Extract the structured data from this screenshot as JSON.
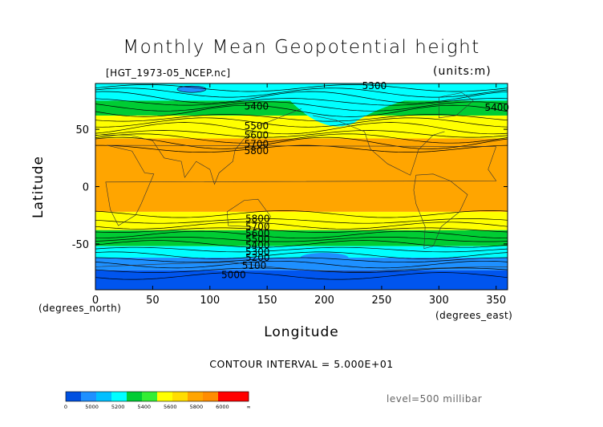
{
  "header": {
    "title": "Monthly Mean Geopotential height",
    "file_label": "[HGT_1973-05_NCEP.nc]",
    "units_label": "(units:m)"
  },
  "axes": {
    "xlabel": "Longitude",
    "ylabel": "Latitude",
    "x_unit": "(degrees_east)",
    "y_unit": "(degrees_north)"
  },
  "footer": {
    "contour_interval": "CONTOUR INTERVAL = 5.000E+01",
    "level": "level=500 millibar"
  },
  "chart_data": {
    "type": "contour",
    "title": "Monthly Mean Geopotential height",
    "xlabel": "Longitude",
    "ylabel": "Latitude",
    "xlim": [
      0,
      360
    ],
    "ylim": [
      -90,
      90
    ],
    "x_ticks": [
      0,
      50,
      100,
      150,
      200,
      250,
      300,
      350
    ],
    "y_ticks": [
      50,
      0,
      -50
    ],
    "units": "m",
    "contour_interval": 50,
    "bands": [
      {
        "lat_from": 90,
        "lat_to": 75,
        "lo": 5300,
        "hi": 5400,
        "color": "#00ffff"
      },
      {
        "lat_from": 75,
        "lat_to": 62,
        "lo": 5400,
        "hi": 5500,
        "color": "#00cc33"
      },
      {
        "lat_from": 62,
        "lat_to": 42,
        "lo": 5500,
        "hi": 5800,
        "color": "#ffff00"
      },
      {
        "lat_from": 42,
        "lat_to": -22,
        "lo": 5800,
        "hi": 6000,
        "color": "#ffa500"
      },
      {
        "lat_from": -22,
        "lat_to": -38,
        "lo": 5500,
        "hi": 5800,
        "color": "#ffff00"
      },
      {
        "lat_from": -38,
        "lat_to": -52,
        "lo": 5400,
        "hi": 5500,
        "color": "#00cc33"
      },
      {
        "lat_from": -52,
        "lat_to": -62,
        "lo": 5200,
        "hi": 5400,
        "color": "#00ffff"
      },
      {
        "lat_from": -62,
        "lat_to": -73,
        "lo": 5000,
        "hi": 5200,
        "color": "#1e90ff"
      },
      {
        "lat_from": -73,
        "lat_to": -90,
        "lo": 0,
        "hi": 5000,
        "color": "#0055ee"
      }
    ],
    "contour_labels": [
      {
        "text": "5300",
        "lon": 233,
        "lat": 88
      },
      {
        "text": "5400",
        "lon": 130,
        "lat": 70
      },
      {
        "text": "5400",
        "lon": 340,
        "lat": 69
      },
      {
        "text": "5500",
        "lon": 130,
        "lat": 53
      },
      {
        "text": "5600",
        "lon": 130,
        "lat": 45
      },
      {
        "text": "5700",
        "lon": 130,
        "lat": 37
      },
      {
        "text": "5800",
        "lon": 130,
        "lat": 31
      },
      {
        "text": "5800",
        "lon": 131,
        "lat": -28
      },
      {
        "text": "5700",
        "lon": 131,
        "lat": -35
      },
      {
        "text": "5600",
        "lon": 131,
        "lat": -41
      },
      {
        "text": "5500",
        "lon": 131,
        "lat": -46
      },
      {
        "text": "5400",
        "lon": 131,
        "lat": -51
      },
      {
        "text": "5300",
        "lon": 131,
        "lat": -57
      },
      {
        "text": "5200",
        "lon": 131,
        "lat": -62
      },
      {
        "text": "5100",
        "lon": 128,
        "lat": -69
      },
      {
        "text": "5000",
        "lon": 110,
        "lat": -77
      }
    ],
    "colorbar": {
      "colors": [
        "#0050e0",
        "#1e90ff",
        "#00bfff",
        "#00ffff",
        "#00cc33",
        "#33ee33",
        "#ffff00",
        "#ffdd00",
        "#ffa500",
        "#ff8c00",
        "#ff0000",
        "#ff0000"
      ],
      "labels": [
        "0",
        "5000",
        "5200",
        "5400",
        "5600",
        "5800",
        "6000",
        "∞"
      ]
    }
  }
}
